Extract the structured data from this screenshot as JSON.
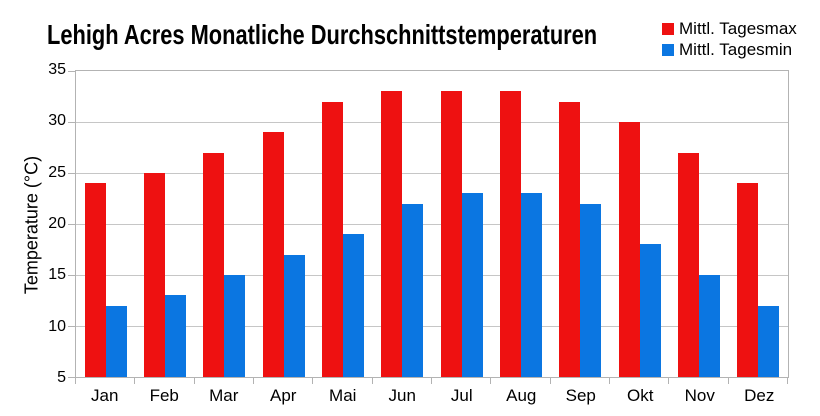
{
  "chart_data": {
    "type": "bar",
    "title": "Lehigh Acres Monatliche Durchschnittstemperaturen",
    "xlabel": "",
    "ylabel": "Temperature (°C)",
    "categories": [
      "Jan",
      "Feb",
      "Mar",
      "Apr",
      "Mai",
      "Jun",
      "Jul",
      "Aug",
      "Sep",
      "Okt",
      "Nov",
      "Dez"
    ],
    "series": [
      {
        "name": "Mittl. Tagesmax",
        "color": "#ee1111",
        "values": [
          24,
          25,
          27,
          29,
          32,
          33,
          33,
          33,
          32,
          30,
          27,
          24
        ]
      },
      {
        "name": "Mittl. Tagesmin",
        "color": "#0b76e1",
        "values": [
          12,
          13,
          15,
          17,
          19,
          22,
          23,
          23,
          22,
          18,
          15,
          12
        ]
      }
    ],
    "ylim": [
      5,
      35
    ],
    "ytick_step": 5,
    "ytick_labels": [
      "5",
      "10",
      "15",
      "20",
      "25",
      "30",
      "35"
    ],
    "grid": true,
    "legend_position": "top-right",
    "axis_color": "#b3b3b3",
    "background_color": "#ffffff",
    "text_color": "#000000"
  }
}
